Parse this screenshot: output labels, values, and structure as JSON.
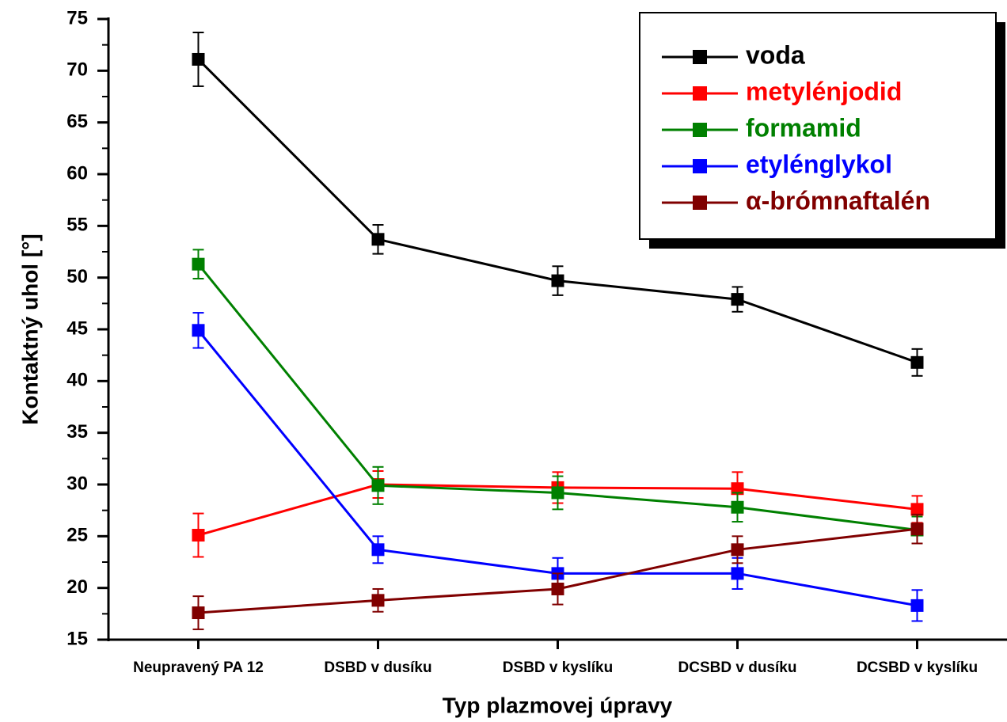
{
  "chart_data": {
    "type": "line",
    "xlabel": "Typ plazmovej úpravy",
    "ylabel": "Kontaktný uhol [°]",
    "categories": [
      "Neupravený PA 12",
      "DSBD v dusíku",
      "DSBD v kyslíku",
      "DCSBD v dusíku",
      "DCSBD v kyslíku"
    ],
    "ylim": [
      15,
      75
    ],
    "yticks": [
      15,
      20,
      25,
      30,
      35,
      40,
      45,
      50,
      55,
      60,
      65,
      70,
      75
    ],
    "legend": "upper right",
    "series": [
      {
        "name": "voda",
        "color": "#000000",
        "values": [
          71.1,
          53.7,
          49.7,
          47.9,
          41.8
        ],
        "errors": [
          2.6,
          1.4,
          1.4,
          1.2,
          1.3
        ]
      },
      {
        "name": "metylénjodid",
        "color": "#ff0000",
        "values": [
          25.1,
          30.0,
          29.7,
          29.6,
          27.6
        ],
        "errors": [
          2.1,
          1.3,
          1.5,
          1.6,
          1.3
        ]
      },
      {
        "name": "formamid",
        "color": "#008000",
        "values": [
          51.3,
          29.9,
          29.2,
          27.8,
          25.6
        ],
        "errors": [
          1.4,
          1.8,
          1.6,
          1.4,
          1.3
        ]
      },
      {
        "name": "etylénglykol",
        "color": "#0000ff",
        "values": [
          44.9,
          23.7,
          21.4,
          21.4,
          18.3
        ],
        "errors": [
          1.7,
          1.3,
          1.5,
          1.5,
          1.5
        ]
      },
      {
        "name": "α-brómnaftalén",
        "color": "#800000",
        "values": [
          17.6,
          18.8,
          19.9,
          23.7,
          25.7
        ],
        "errors": [
          1.6,
          1.1,
          1.5,
          1.3,
          1.4
        ]
      }
    ]
  }
}
